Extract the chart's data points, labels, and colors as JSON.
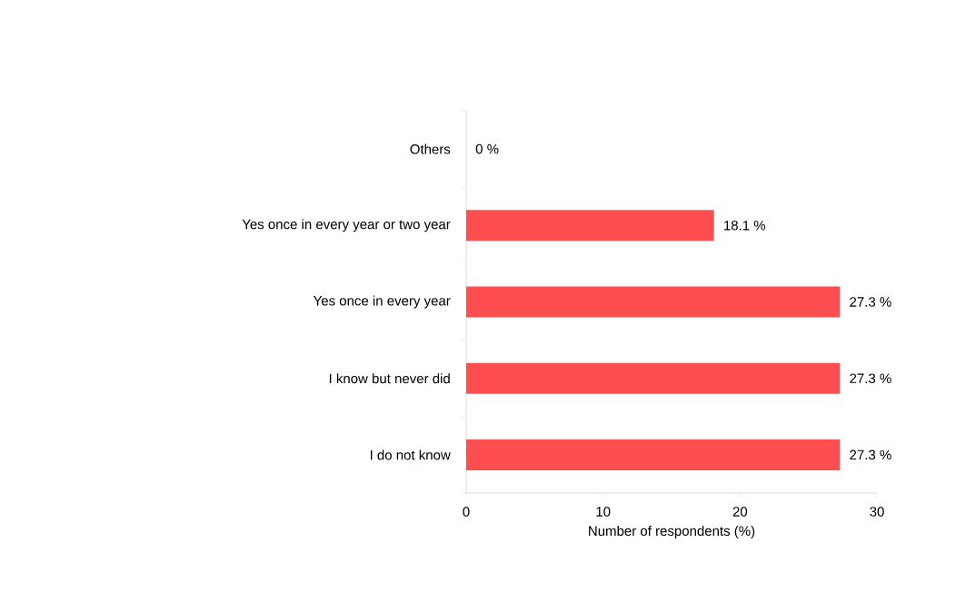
{
  "chart_data": {
    "type": "bar",
    "orientation": "horizontal",
    "categories": [
      "Others",
      "Yes once in every year or two year",
      "Yes once in every year",
      "I know but never did",
      "I do not know"
    ],
    "values": [
      0,
      18.1,
      27.3,
      27.3,
      27.3
    ],
    "value_labels": [
      "0 %",
      "18.1 %",
      "27.3 %",
      "27.3 %",
      "27.3 %"
    ],
    "color": "#fe4f50",
    "xlabel": "Number of respondents (%)",
    "xlim": [
      0,
      30
    ],
    "xticks": [
      0,
      10,
      20,
      30
    ],
    "grid": false
  }
}
